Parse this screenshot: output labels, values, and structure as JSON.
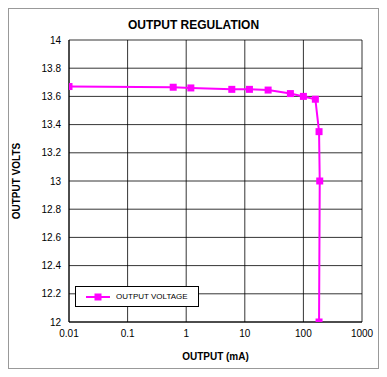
{
  "chart_data": {
    "type": "line",
    "title": "OUTPUT REGULATION",
    "x_label": "OUTPUT (mA)",
    "y_label": "OUTPUT VOLTS",
    "log": "x",
    "grid": true,
    "legend": "lower left",
    "xlim": [
      0.01,
      1000
    ],
    "xticks": [
      0.01,
      0.1,
      1,
      10,
      100,
      1000
    ],
    "ylim": [
      12,
      14
    ],
    "yticks": [
      12,
      12.2,
      12.4,
      12.6,
      12.8,
      13,
      13.2,
      13.4,
      13.6,
      13.8,
      14
    ],
    "series": [
      {
        "name": "OUTPUT VOLTAGE",
        "color": "#ff00ff",
        "marker": "square",
        "line_style": "solid",
        "x": [
          0.01,
          0.6,
          1.2,
          6,
          12,
          25,
          60,
          100,
          160,
          185,
          190,
          185
        ],
        "values": [
          13.67,
          13.665,
          13.66,
          13.65,
          13.65,
          13.645,
          13.62,
          13.6,
          13.58,
          13.35,
          13.0,
          12.0
        ]
      }
    ]
  }
}
